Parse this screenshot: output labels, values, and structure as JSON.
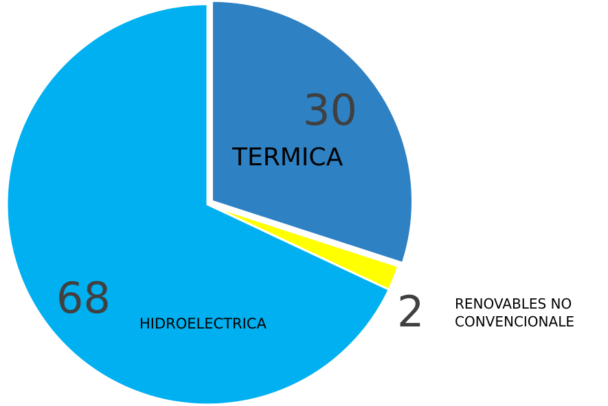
{
  "chart_data": {
    "type": "pie",
    "categories": [
      "TERMICA",
      "RENOVABLES NO CONVENCIONALE",
      "HIDROELECTRICA"
    ],
    "values": [
      30,
      2,
      68
    ],
    "colors": [
      "#2e81c3",
      "#ffff00",
      "#00b0f0"
    ]
  }
}
